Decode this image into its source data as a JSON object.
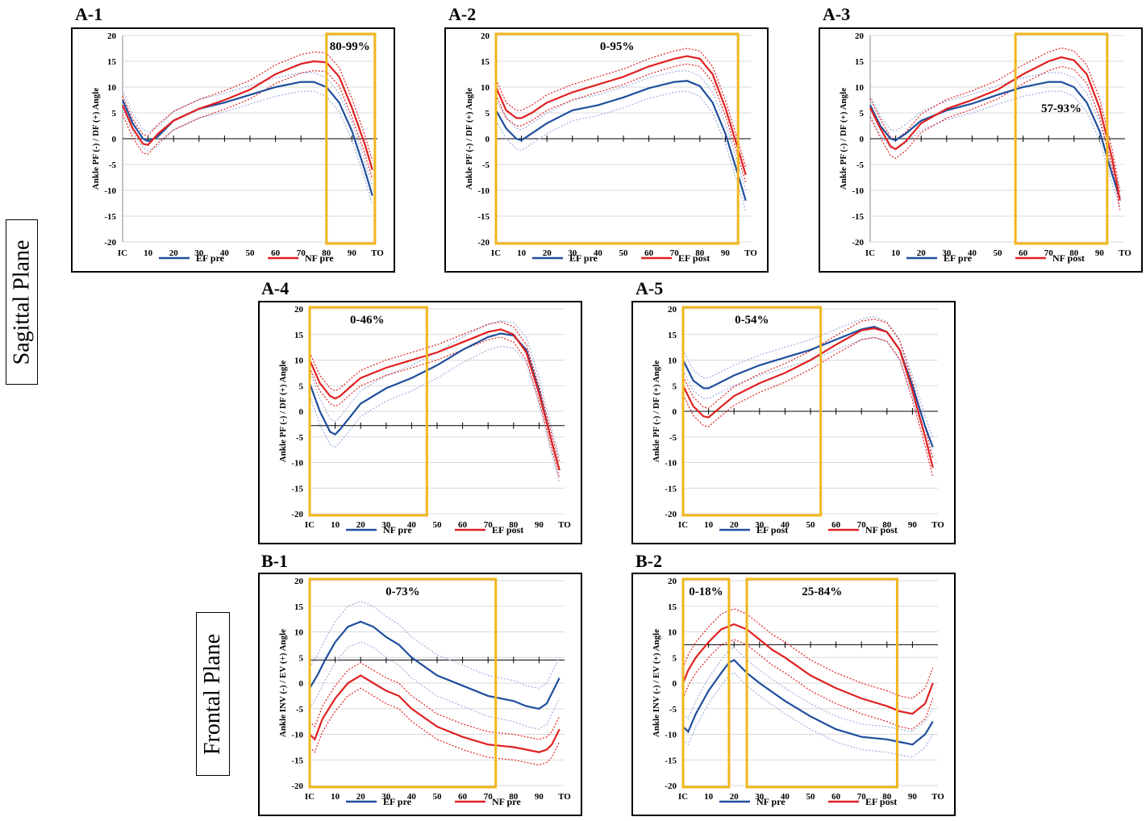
{
  "planes": {
    "sagittal": "Sagittal Plane",
    "frontal": "Frontal Plane"
  },
  "colors": {
    "blue": "#1f4e9e",
    "red": "#e02020",
    "box": "#f2b61c",
    "lightblue": "#9bb0dd",
    "lightred": "#e87070"
  },
  "chart_data": [
    {
      "id": "A-1",
      "title": "A-1",
      "type": "line",
      "ylabel": "Ankle PF (-) / DF (+) Angle",
      "ylim": [
        -20,
        20
      ],
      "yticks": [
        20,
        15,
        10,
        5,
        0,
        -5,
        -10,
        -15,
        -20
      ],
      "xticks": [
        "IC",
        "10",
        "20",
        "30",
        "40",
        "50",
        "60",
        "70",
        "80",
        "90",
        "TO"
      ],
      "zero_axis": 0,
      "highlights": [
        {
          "from": 80,
          "to": 99,
          "label": "80-99%",
          "label_pos": "top-right"
        }
      ],
      "series": [
        {
          "name": "EF pre",
          "color": "blue",
          "x": [
            0,
            4,
            8,
            10,
            14,
            20,
            30,
            40,
            50,
            60,
            70,
            75,
            80,
            85,
            90,
            95,
            98
          ],
          "y": [
            7.5,
            3,
            0,
            -0.5,
            0.5,
            3.5,
            5.8,
            7,
            8.5,
            10,
            11,
            11,
            10,
            7,
            1.5,
            -6,
            -11
          ],
          "sd": 1.8
        },
        {
          "name": "NF pre",
          "color": "red",
          "x": [
            0,
            4,
            8,
            10,
            14,
            20,
            30,
            40,
            50,
            60,
            70,
            75,
            80,
            85,
            90,
            95,
            98
          ],
          "y": [
            6.5,
            2,
            -1,
            -1.2,
            1,
            3.5,
            5.8,
            7.5,
            9.5,
            12.5,
            14.5,
            15,
            14.8,
            12,
            6,
            -1,
            -6
          ],
          "sd": 1.8
        }
      ]
    },
    {
      "id": "A-2",
      "title": "A-2",
      "type": "line",
      "ylabel": "Ankle PF (-) / DF (+) Angle",
      "ylim": [
        -20,
        20
      ],
      "yticks": [
        20,
        15,
        10,
        5,
        0,
        -5,
        -10,
        -15,
        -20
      ],
      "xticks": [
        "IC",
        "10",
        "20",
        "30",
        "40",
        "50",
        "60",
        "70",
        "80",
        "90",
        "TO"
      ],
      "zero_axis": 0,
      "highlights": [
        {
          "from": 0,
          "to": 95,
          "label": "0-95%",
          "label_pos": "top-center"
        }
      ],
      "series": [
        {
          "name": "EF pre",
          "color": "blue",
          "x": [
            0,
            4,
            8,
            10,
            14,
            20,
            30,
            40,
            50,
            60,
            70,
            75,
            80,
            85,
            90,
            95,
            98
          ],
          "y": [
            5.5,
            2,
            0,
            -0.3,
            1,
            3,
            5.5,
            6.5,
            8,
            9.8,
            11,
            11.2,
            10.2,
            7,
            1,
            -7,
            -12
          ],
          "sd": 2
        },
        {
          "name": "EF post",
          "color": "red",
          "x": [
            0,
            4,
            8,
            10,
            14,
            20,
            30,
            40,
            50,
            60,
            70,
            75,
            80,
            85,
            90,
            95,
            98
          ],
          "y": [
            10,
            5.5,
            4,
            4,
            5,
            7,
            9,
            10.5,
            12,
            14,
            15.5,
            16,
            15.5,
            12.5,
            6,
            -2,
            -7
          ],
          "sd": 1.5
        }
      ]
    },
    {
      "id": "A-3",
      "title": "A-3",
      "type": "line",
      "ylabel": "Ankle PF (-) / DF (+) Angle",
      "ylim": [
        -20,
        20
      ],
      "yticks": [
        20,
        15,
        10,
        5,
        0,
        -5,
        -10,
        -15,
        -20
      ],
      "xticks": [
        "IC",
        "10",
        "20",
        "30",
        "40",
        "50",
        "60",
        "70",
        "80",
        "90",
        "TO"
      ],
      "zero_axis": 0,
      "highlights": [
        {
          "from": 57,
          "to": 93,
          "label": "57-93%",
          "label_pos": "middle"
        }
      ],
      "series": [
        {
          "name": "EF pre",
          "color": "blue",
          "x": [
            0,
            4,
            8,
            10,
            14,
            20,
            30,
            40,
            50,
            60,
            70,
            75,
            80,
            85,
            90,
            95,
            98
          ],
          "y": [
            6.5,
            2.5,
            0,
            -0.3,
            1,
            3.5,
            5.5,
            6.8,
            8.5,
            10,
            11,
            11,
            10,
            7,
            1.5,
            -7,
            -11.5
          ],
          "sd": 1.8
        },
        {
          "name": "NF post",
          "color": "red",
          "x": [
            0,
            4,
            8,
            10,
            14,
            20,
            30,
            40,
            50,
            60,
            70,
            75,
            80,
            85,
            90,
            95,
            98
          ],
          "y": [
            6,
            2,
            -1.5,
            -2,
            -0.5,
            3,
            5.8,
            7.5,
            9.5,
            12.5,
            15,
            15.8,
            15.2,
            12.5,
            6,
            -4,
            -12
          ],
          "sd": 1.8
        }
      ]
    },
    {
      "id": "A-4",
      "title": "A-4",
      "type": "line",
      "ylabel": "Ankle PF (-) / DF (+) Angle",
      "ylim": [
        -20,
        20
      ],
      "yticks": [
        20,
        15,
        10,
        5,
        0,
        -5,
        -10,
        -15,
        -20
      ],
      "xticks": [
        "IC",
        "10",
        "20",
        "30",
        "40",
        "50",
        "60",
        "70",
        "80",
        "90",
        "TO"
      ],
      "zero_axis": -2.8,
      "highlights": [
        {
          "from": 0,
          "to": 46,
          "label": "0-46%",
          "label_pos": "top-left"
        }
      ],
      "series": [
        {
          "name": "NF pre",
          "color": "blue",
          "x": [
            0,
            4,
            8,
            10,
            12,
            16,
            20,
            30,
            40,
            50,
            60,
            70,
            75,
            80,
            85,
            90,
            95,
            98
          ],
          "y": [
            5.5,
            0,
            -4,
            -4.5,
            -3.5,
            -1,
            1.5,
            4.5,
            6.5,
            9,
            12,
            14.5,
            15.2,
            14.8,
            12,
            4,
            -6,
            -11.5
          ],
          "sd": 2.5
        },
        {
          "name": "EF post",
          "color": "red",
          "x": [
            0,
            4,
            8,
            10,
            12,
            16,
            20,
            30,
            40,
            50,
            60,
            70,
            75,
            80,
            85,
            90,
            95,
            98
          ],
          "y": [
            10,
            5.5,
            3,
            2.5,
            3,
            4.8,
            6.5,
            8.5,
            10,
            11.5,
            13.5,
            15.5,
            16,
            15,
            11.5,
            3.5,
            -6,
            -11.5
          ],
          "sd": 1.5
        }
      ]
    },
    {
      "id": "A-5",
      "title": "A-5",
      "type": "line",
      "ylabel": "Ankle PF (-) / DF (+) Angle",
      "ylim": [
        -20,
        20
      ],
      "yticks": [
        20,
        15,
        10,
        5,
        0,
        -5,
        -10,
        -15,
        -20
      ],
      "xticks": [
        "IC",
        "10",
        "20",
        "30",
        "40",
        "50",
        "60",
        "70",
        "80",
        "90",
        "TO"
      ],
      "zero_axis": 0,
      "highlights": [
        {
          "from": 0,
          "to": 54,
          "label": "0-54%",
          "label_pos": "top-center"
        }
      ],
      "series": [
        {
          "name": "EF post",
          "color": "blue",
          "x": [
            0,
            4,
            8,
            10,
            14,
            20,
            30,
            40,
            50,
            60,
            70,
            75,
            80,
            85,
            90,
            95,
            98
          ],
          "y": [
            10,
            6,
            4.5,
            4.5,
            5.5,
            7,
            9,
            10.5,
            12,
            14,
            16,
            16.5,
            15.5,
            12,
            5,
            -3,
            -7
          ],
          "sd": 2
        },
        {
          "name": "NF post",
          "color": "red",
          "x": [
            0,
            4,
            8,
            10,
            14,
            20,
            30,
            40,
            50,
            60,
            70,
            75,
            80,
            85,
            90,
            95,
            98
          ],
          "y": [
            5,
            1,
            -1,
            -1.2,
            0.5,
            3,
            5.5,
            7.5,
            10,
            13,
            15.8,
            16.2,
            15.5,
            12,
            4,
            -5,
            -11
          ],
          "sd": 1.8
        }
      ]
    },
    {
      "id": "B-1",
      "title": "B-1",
      "type": "line",
      "ylabel": "Ankle INV (-) / EV (+) Angle",
      "ylim": [
        -20,
        20
      ],
      "yticks": [
        20,
        15,
        10,
        5,
        0,
        -5,
        -10,
        -15,
        -20
      ],
      "xticks": [
        "IC",
        "10",
        "20",
        "30",
        "40",
        "50",
        "60",
        "70",
        "80",
        "90",
        "TO"
      ],
      "zero_axis": 4.5,
      "highlights": [
        {
          "from": 0,
          "to": 73,
          "label": "0-73%",
          "label_pos": "top-center"
        }
      ],
      "series": [
        {
          "name": "EF pre",
          "color": "blue",
          "x": [
            0,
            3,
            6,
            10,
            15,
            20,
            25,
            30,
            35,
            40,
            50,
            60,
            70,
            80,
            85,
            90,
            93,
            95,
            98
          ],
          "y": [
            -1,
            1.5,
            4.5,
            8,
            11,
            12,
            11,
            9,
            7.5,
            5,
            1.5,
            -0.5,
            -2.5,
            -3.5,
            -4.5,
            -5,
            -4,
            -2,
            1
          ],
          "sd": 4
        },
        {
          "name": "NF pre",
          "color": "red",
          "x": [
            0,
            2,
            5,
            10,
            15,
            20,
            25,
            30,
            35,
            40,
            50,
            60,
            70,
            80,
            85,
            90,
            93,
            95,
            98
          ],
          "y": [
            -10,
            -11,
            -7,
            -3,
            0,
            1.5,
            0,
            -1.5,
            -2.5,
            -5,
            -8.5,
            -10.5,
            -12,
            -12.5,
            -13,
            -13.5,
            -13,
            -12,
            -9
          ],
          "sd": 2.5
        }
      ]
    },
    {
      "id": "B-2",
      "title": "B-2",
      "type": "line",
      "ylabel": "Ankle INV (-) / EV (+) Angle",
      "ylim": [
        -20,
        20
      ],
      "yticks": [
        20,
        15,
        10,
        5,
        0,
        -5,
        -10,
        -15,
        -20
      ],
      "xticks": [
        "IC",
        "10",
        "20",
        "30",
        "40",
        "50",
        "60",
        "70",
        "80",
        "90",
        "TO"
      ],
      "zero_axis": 7.5,
      "highlights": [
        {
          "from": 0,
          "to": 18,
          "label": "0-18%",
          "label_pos": "top-center"
        },
        {
          "from": 25,
          "to": 84,
          "label": "25-84%",
          "label_pos": "top-center"
        }
      ],
      "series": [
        {
          "name": "NF pre",
          "color": "blue",
          "x": [
            0,
            2,
            5,
            10,
            15,
            18,
            20,
            25,
            30,
            40,
            50,
            60,
            70,
            80,
            85,
            90,
            95,
            98
          ],
          "y": [
            -8.5,
            -9.5,
            -6,
            -1.5,
            2,
            4,
            4.5,
            2,
            0,
            -3.5,
            -6.5,
            -9,
            -10.5,
            -11,
            -11.5,
            -12,
            -10,
            -7.5
          ],
          "sd": 2.5
        },
        {
          "name": "EF post",
          "color": "red",
          "x": [
            0,
            2,
            5,
            10,
            15,
            20,
            25,
            30,
            35,
            40,
            50,
            60,
            70,
            80,
            85,
            90,
            95,
            98
          ],
          "y": [
            0,
            2.5,
            5,
            8,
            10.5,
            11.5,
            10.5,
            8.5,
            6.5,
            5,
            1.5,
            -1,
            -3,
            -4.5,
            -5.5,
            -6,
            -4,
            0
          ],
          "sd": 3
        }
      ]
    }
  ]
}
